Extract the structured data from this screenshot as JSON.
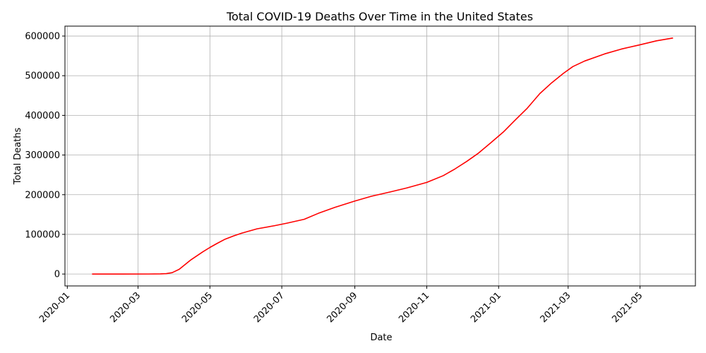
{
  "chart_data": {
    "type": "line",
    "title": "Total COVID-19 Deaths Over Time in the United States",
    "xlabel": "Date",
    "ylabel": "Total Deaths",
    "x_ticks": [
      "2020-01",
      "2020-03",
      "2020-05",
      "2020-07",
      "2020-09",
      "2020-11",
      "2021-01",
      "2021-03",
      "2021-05"
    ],
    "y_ticks": [
      0,
      100000,
      200000,
      300000,
      400000,
      500000,
      600000
    ],
    "xlim": [
      "2019-12-30",
      "2021-06-17"
    ],
    "ylim": [
      -30000,
      625000
    ],
    "grid": true,
    "series": [
      {
        "color": "#ff0000",
        "x": [
          "2020-01-22",
          "2020-02-15",
          "2020-03-10",
          "2020-03-20",
          "2020-03-25",
          "2020-03-30",
          "2020-04-05",
          "2020-04-10",
          "2020-04-15",
          "2020-04-20",
          "2020-04-25",
          "2020-05-01",
          "2020-05-07",
          "2020-05-14",
          "2020-05-21",
          "2020-05-28",
          "2020-06-10",
          "2020-06-25",
          "2020-07-05",
          "2020-07-20",
          "2020-08-01",
          "2020-08-15",
          "2020-09-01",
          "2020-09-15",
          "2020-10-01",
          "2020-10-15",
          "2020-11-01",
          "2020-11-15",
          "2020-11-25",
          "2020-12-05",
          "2020-12-15",
          "2020-12-25",
          "2021-01-05",
          "2021-01-15",
          "2021-01-25",
          "2021-02-05",
          "2021-02-15",
          "2021-02-25",
          "2021-03-05",
          "2021-03-15",
          "2021-04-01",
          "2021-04-15",
          "2021-05-01",
          "2021-05-15",
          "2021-05-29"
        ],
        "y": [
          0,
          0,
          30,
          300,
          1100,
          3500,
          12000,
          24000,
          36000,
          46000,
          56000,
          67000,
          77000,
          88000,
          96000,
          103000,
          114000,
          122000,
          128000,
          138000,
          153000,
          168000,
          184000,
          196000,
          207000,
          217000,
          231000,
          248000,
          265000,
          284000,
          305000,
          330000,
          358000,
          388000,
          417000,
          455000,
          482000,
          506000,
          523000,
          537000,
          555000,
          567000,
          578000,
          588000,
          595000
        ]
      }
    ]
  }
}
